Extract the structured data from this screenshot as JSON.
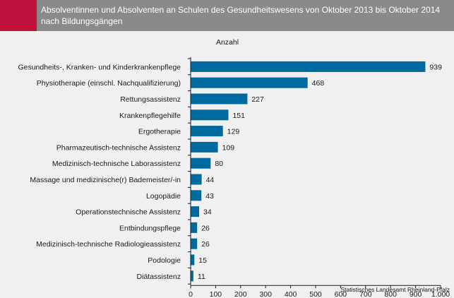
{
  "header": {
    "title": "Absolventinnen und Absolventen an Schulen des Gesundheitswesens von Oktober 2013 bis Oktober 2014 nach Bildungsgängen"
  },
  "colors": {
    "accent": "#c0123d",
    "header_bg": "#8a8a8a",
    "bar": "#006a9e",
    "background": "#f0f0f0"
  },
  "source": "Statistisches Landesamt Rheinland-Pfalz",
  "chart_data": {
    "type": "bar",
    "orientation": "horizontal",
    "title": "Absolventinnen und Absolventen an Schulen des Gesundheitswesens von Oktober 2013 bis Oktober 2014 nach Bildungsgängen",
    "unit_label": "Anzahl",
    "categories": [
      "Gesundheits-, Kranken- und Kinderkrankenpflege",
      "Physiotherapie (einschl. Nachqualifizierung)",
      "Rettungsassistenz",
      "Krankenpflegehilfe",
      "Ergotherapie",
      "Pharmazeutisch-technische Assistenz",
      "Medizinisch-technische Laborassistenz",
      "Massage und medizinische(r) Bademeister/-in",
      "Logopädie",
      "Operationstechnische Assistenz",
      "Entbindungspflege",
      "Medizinisch-technische Radiologieassistenz",
      "Podologie",
      "Diätassistenz"
    ],
    "values": [
      939,
      468,
      227,
      151,
      129,
      109,
      80,
      44,
      43,
      34,
      26,
      26,
      15,
      11
    ],
    "xlim": [
      0,
      1000
    ],
    "xticks": [
      0,
      100,
      200,
      300,
      400,
      500,
      600,
      700,
      800,
      900,
      1000
    ],
    "xtick_labels": [
      "0",
      "100",
      "200",
      "300",
      "400",
      "500",
      "600",
      "700",
      "800",
      "900",
      "1.000"
    ],
    "grid": false,
    "legend": "none"
  }
}
